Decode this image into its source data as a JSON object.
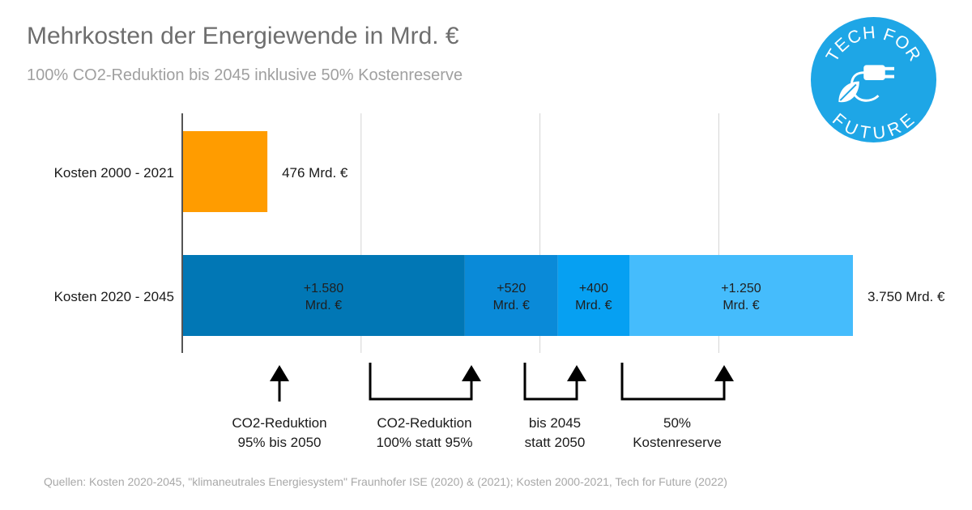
{
  "title": "Mehrkosten der Energiewende in Mrd. €",
  "subtitle": "100% CO2-Reduktion bis 2045 inklusive 50% Kostenreserve",
  "source": "Quellen: Kosten 2020-2045, \"klimaneutrales Energiesystem\" Fraunhofer ISE (2020) & (2021); Kosten 2000-2021, Tech for Future (2022)",
  "logo": {
    "text_top": "TECH FOR",
    "text_bottom": "FUTURE",
    "color": "#1ea6e6"
  },
  "chart_data": {
    "type": "bar",
    "orientation": "horizontal",
    "stacked": true,
    "title": "Mehrkosten der Energiewende in Mrd. €",
    "xlim": [
      0,
      3750
    ],
    "gridlines": [
      1000,
      2000,
      3000
    ],
    "categories": [
      "Kosten 2000 - 2021",
      "Kosten 2020 - 2045"
    ],
    "bars": [
      {
        "category": "Kosten 2000 - 2021",
        "total_label": "476 Mrd. €",
        "segments": [
          {
            "value": 476,
            "color": "#ff9c00",
            "label_line1": "",
            "label_line2": ""
          }
        ]
      },
      {
        "category": "Kosten 2020 - 2045",
        "total_label": "3.750 Mrd. €",
        "segments": [
          {
            "value": 1580,
            "color": "#0177b5",
            "label_line1": "+1.580",
            "label_line2": "Mrd. €"
          },
          {
            "value": 520,
            "color": "#0a8ad8",
            "label_line1": "+520",
            "label_line2": "Mrd. €"
          },
          {
            "value": 400,
            "color": "#06a0f2",
            "label_line1": "+400",
            "label_line2": "Mrd. €"
          },
          {
            "value": 1250,
            "color": "#45bcfc",
            "label_line1": "+1.250",
            "label_line2": "Mrd. €"
          }
        ]
      }
    ],
    "annotations": [
      {
        "line1": "CO2-Reduktion",
        "line2": "95% bis 2050",
        "kind": "arrow"
      },
      {
        "line1": "CO2-Reduktion",
        "line2": "100% statt 95%",
        "kind": "bracket"
      },
      {
        "line1": "bis 2045",
        "line2": "statt 2050",
        "kind": "bracket"
      },
      {
        "line1": "50%",
        "line2": "Kostenreserve",
        "kind": "bracket"
      }
    ]
  }
}
